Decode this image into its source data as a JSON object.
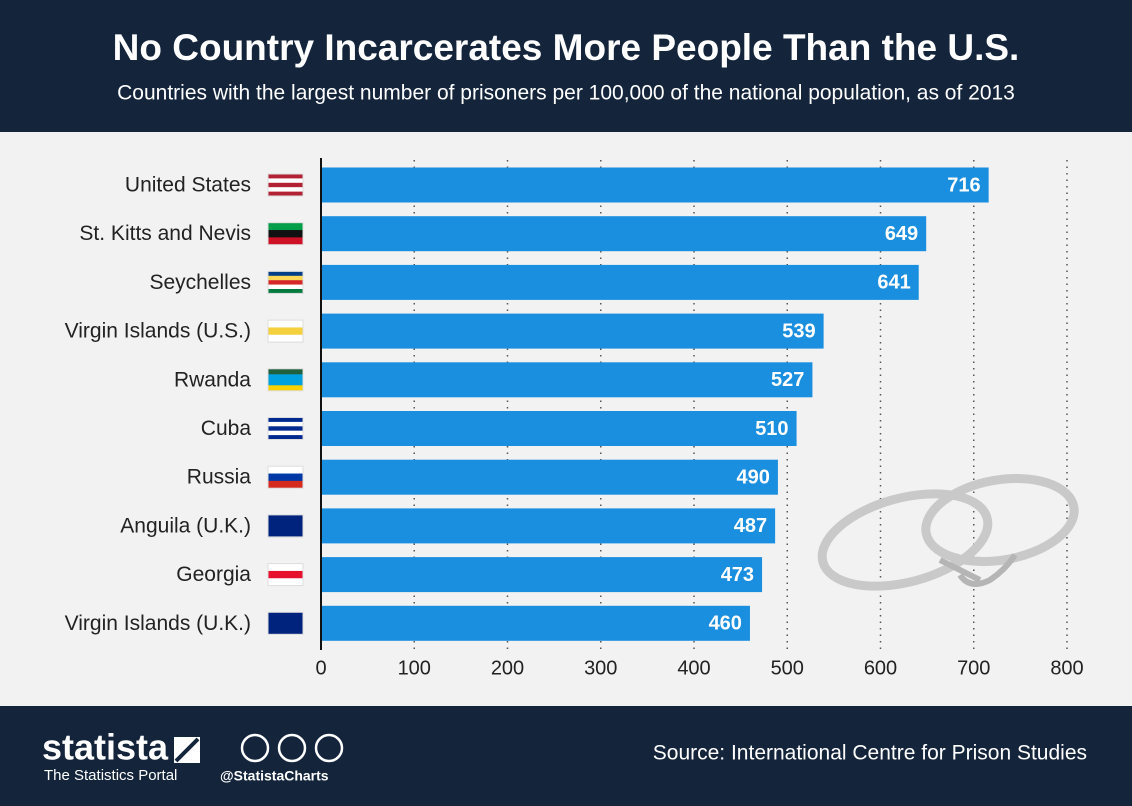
{
  "chart_data": {
    "type": "bar",
    "orientation": "horizontal",
    "title": "No Country Incarcerates More People Than the U.S.",
    "subtitle": "Countries with the largest number of prisoners per 100,000 of the national population, as of 2013",
    "categories": [
      "United States",
      "St. Kitts and Nevis",
      "Seychelles",
      "Virgin Islands (U.S.)",
      "Rwanda",
      "Cuba",
      "Russia",
      "Anguila (U.K.)",
      "Georgia",
      "Virgin Islands (U.K.)"
    ],
    "values": [
      716,
      649,
      641,
      539,
      527,
      510,
      490,
      487,
      473,
      460
    ],
    "color": "#1b8fdf",
    "xlim": [
      0,
      800
    ],
    "xticks": [
      0,
      100,
      200,
      300,
      400,
      500,
      600,
      700,
      800
    ],
    "grid": true
  },
  "footer": {
    "brand": "statista",
    "tagline": "The Statistics Portal",
    "handle": "@StatistaCharts",
    "source": "Source: International Centre for Prison Studies"
  }
}
